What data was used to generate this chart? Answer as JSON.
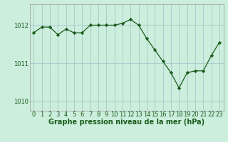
{
  "x": [
    0,
    1,
    2,
    3,
    4,
    5,
    6,
    7,
    8,
    9,
    10,
    11,
    12,
    13,
    14,
    15,
    16,
    17,
    18,
    19,
    20,
    21,
    22,
    23
  ],
  "y": [
    1011.8,
    1011.95,
    1011.95,
    1011.75,
    1011.9,
    1011.8,
    1011.8,
    1012.0,
    1012.0,
    1012.0,
    1012.0,
    1012.05,
    1012.15,
    1012.0,
    1011.65,
    1011.35,
    1011.05,
    1010.75,
    1010.35,
    1010.75,
    1010.8,
    1010.8,
    1011.2,
    1011.55
  ],
  "line_color": "#1a5c1a",
  "marker_color": "#1a5c1a",
  "bg_color": "#cceedd",
  "grid_color": "#aacccc",
  "xlabel": "Graphe pression niveau de la mer (hPa)",
  "yticks": [
    1010,
    1011,
    1012
  ],
  "ylim": [
    1009.75,
    1012.55
  ],
  "xlim": [
    -0.5,
    23.5
  ],
  "xtick_labels": [
    "0",
    "1",
    "2",
    "3",
    "4",
    "5",
    "6",
    "7",
    "8",
    "9",
    "10",
    "11",
    "12",
    "13",
    "14",
    "15",
    "16",
    "17",
    "18",
    "19",
    "20",
    "21",
    "22",
    "23"
  ],
  "axis_fontsize": 6,
  "label_fontsize": 7
}
